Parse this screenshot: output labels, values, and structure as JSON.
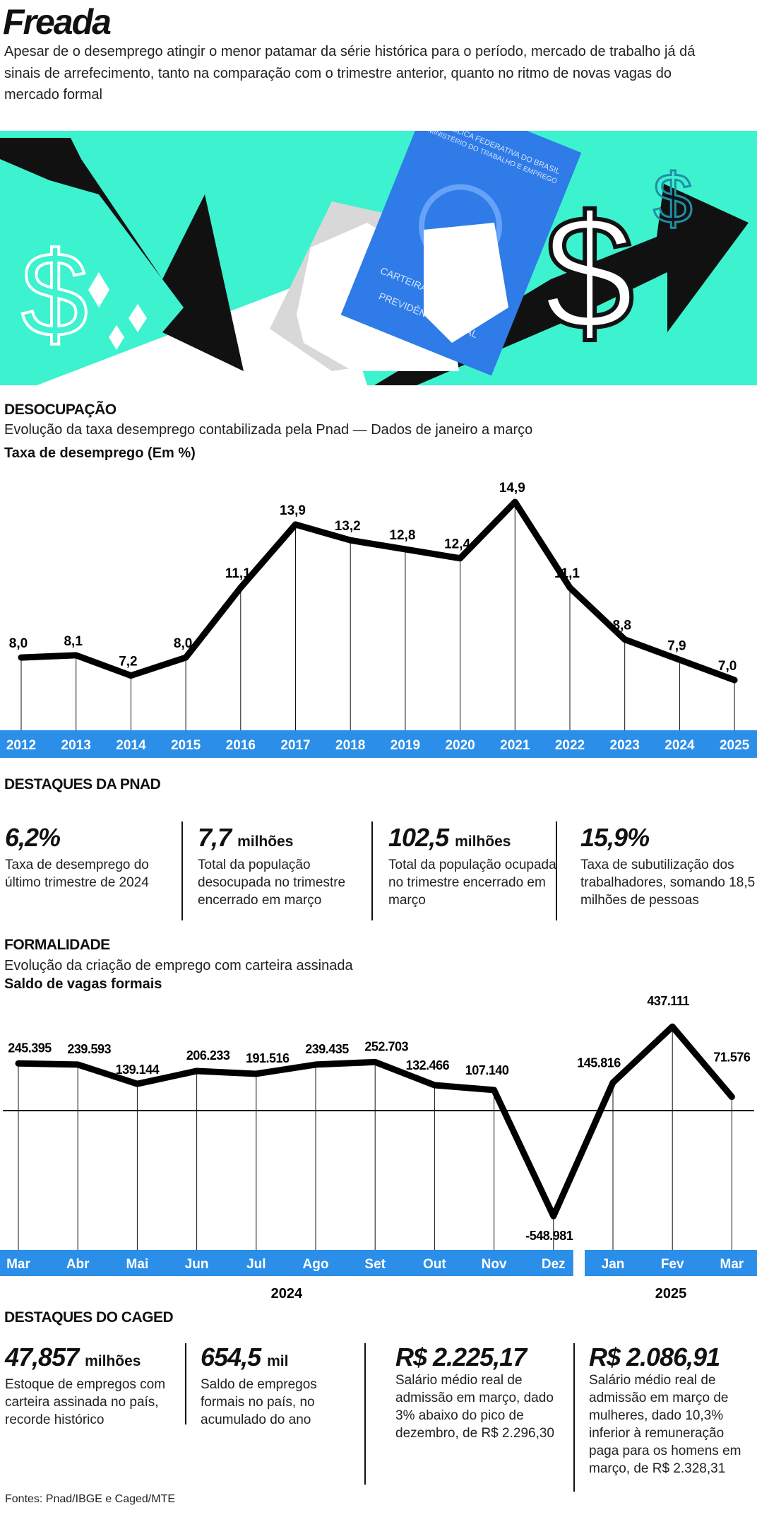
{
  "header": {
    "title": "Freada",
    "dek": "Apesar de o desemprego atingir o menor patamar da série histórica para o período, mercado de trabalho já dá sinais de arrefecimento, tanto na comparação com o trimestre anterior, quanto no ritmo de novas vagas do mercado formal"
  },
  "illustration": {
    "card_line1": "REPÚBLICA FEDERATIVA DO BRASIL",
    "card_line2": "MINISTÉRIO DO TRABALHO E EMPREGO",
    "card_title1": "CARTEIRA DE TRABALHO",
    "card_title2": "E",
    "card_title3": "PREVIDÊNCIA SOCIAL",
    "colors": {
      "background": "#3df2cf",
      "card": "#2f7be8",
      "arrow": "#111111"
    }
  },
  "section1": {
    "title": "DESOCUPAÇÃO",
    "subtitle": "Evolução da taxa desemprego contabilizada pela Pnad — Dados de janeiro a março",
    "chart_title": "Taxa de desemprego (Em %)"
  },
  "pnad": {
    "title": "DESTAQUES DA PNAD",
    "items": [
      {
        "value": "6,2%",
        "unit": "",
        "desc": "Taxa de desemprego do último trimestre de 2024"
      },
      {
        "value": "7,7",
        "unit": "milhões",
        "desc": "Total da população desocupada  no trimestre encerrado em março"
      },
      {
        "value": "102,5",
        "unit": "milhões",
        "desc": "Total da população ocupada no trimestre encerrado em março"
      },
      {
        "value": "15,9%",
        "unit": "",
        "desc": "Taxa de subutilização dos trabalhadores, somando 18,5 milhões de pessoas"
      }
    ]
  },
  "section2": {
    "title": "FORMALIDADE",
    "subtitle": "Evolução da criação de emprego com carteira assinada",
    "chart_title": "Saldo de vagas formais"
  },
  "caged": {
    "title": "DESTAQUES DO CAGED",
    "items": [
      {
        "value": "47,857",
        "unit": "milhões",
        "desc": "Estoque de empregos com carteira assinada no país, recorde histórico"
      },
      {
        "value": "654,5",
        "unit": "mil",
        "desc": "Saldo de empregos formais no país, no acumulado do ano"
      },
      {
        "value": "R$ 2.225,17",
        "unit": "",
        "desc": "Salário médio real de admissão em março, dado 3% abaixo do pico de dezembro, de R$ 2.296,30"
      },
      {
        "value": "R$ 2.086,91",
        "unit": "",
        "desc": "Salário médio real de admissão em março de mulheres, dado 10,3% inferior à remuneração paga para os homens em março, de R$ 2.328,31"
      }
    ]
  },
  "footer": {
    "sources": "Fontes: Pnad/IBGE e Caged/MTE"
  },
  "chart_data": [
    {
      "type": "line",
      "title": "Taxa de desemprego (Em %)",
      "categories": [
        "2012",
        "2013",
        "2014",
        "2015",
        "2016",
        "2017",
        "2018",
        "2019",
        "2020",
        "2021",
        "2022",
        "2023",
        "2024",
        "2025"
      ],
      "values": [
        8.0,
        8.1,
        7.2,
        8.0,
        11.1,
        13.9,
        13.2,
        12.8,
        12.4,
        14.9,
        11.1,
        8.8,
        7.9,
        7.0
      ],
      "labels": [
        "8,0",
        "8,1",
        "7,2",
        "8,0",
        "11,1",
        "13,9",
        "13,2",
        "12,8",
        "12,4",
        "14,9",
        "11,1",
        "8,8",
        "7,9",
        "7,0"
      ],
      "axis_color": "#2b8ee8",
      "line_color": "#000000"
    },
    {
      "type": "line",
      "title": "Saldo de vagas formais",
      "categories": [
        "Mar",
        "Abr",
        "Mai",
        "Jun",
        "Jul",
        "Ago",
        "Set",
        "Out",
        "Nov",
        "Dez",
        "Jan",
        "Fev",
        "Mar"
      ],
      "groups": [
        {
          "label": "2024",
          "count": 10
        },
        {
          "label": "2025",
          "count": 3
        }
      ],
      "values": [
        245395,
        239593,
        139144,
        206233,
        191516,
        239435,
        252703,
        132466,
        107140,
        -548981,
        145816,
        437111,
        71576
      ],
      "labels": [
        "245.395",
        "239.593",
        "139.144",
        "206.233",
        "191.516",
        "239.435",
        "252.703",
        "132.466",
        "107.140",
        "-548.981",
        "145.816",
        "437.111",
        "71.576"
      ],
      "axis_color": "#2b8ee8",
      "line_color": "#000000"
    }
  ]
}
